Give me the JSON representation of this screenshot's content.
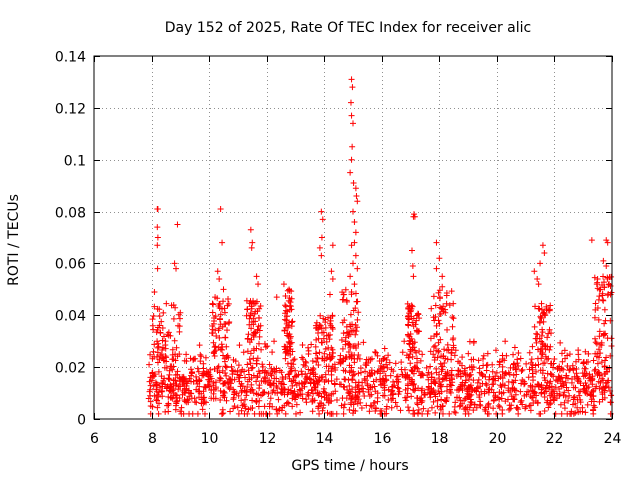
{
  "chart_data": {
    "type": "scatter",
    "title": "Day 152 of 2025, Rate Of TEC Index for receiver alic",
    "xlabel": "GPS time / hours",
    "ylabel": "ROTI / TECUs",
    "xlim": [
      6,
      24
    ],
    "ylim": [
      0,
      0.14
    ],
    "xticks": [
      6,
      8,
      10,
      12,
      14,
      16,
      18,
      20,
      22,
      24
    ],
    "xtick_labels": [
      "6",
      "8",
      "10",
      "12",
      "14",
      "16",
      "18",
      "20",
      "22",
      "24"
    ],
    "yticks": [
      0,
      0.02,
      0.04,
      0.06,
      0.08,
      0.1,
      0.12,
      0.14
    ],
    "ytick_labels": [
      "0",
      "0.02",
      "0.04",
      "0.06",
      "0.08",
      "0.1",
      "0.12",
      "0.14"
    ],
    "grid": true,
    "marker": "+",
    "marker_color": "#ff0000",
    "background_band": {
      "x_start": 7.9,
      "x_end": 24.0,
      "median": 0.013,
      "spread": 0.008,
      "min": 0.002,
      "max": 0.03,
      "point_count": 1600
    },
    "bursts": [
      {
        "x_start": 8.0,
        "x_end": 9.0,
        "y_max": 0.045
      },
      {
        "x_start": 10.1,
        "x_end": 10.7,
        "y_max": 0.047
      },
      {
        "x_start": 11.3,
        "x_end": 11.8,
        "y_max": 0.046
      },
      {
        "x_start": 12.6,
        "x_end": 12.9,
        "y_max": 0.05
      },
      {
        "x_start": 13.7,
        "x_end": 14.3,
        "y_max": 0.04
      },
      {
        "x_start": 14.6,
        "x_end": 15.2,
        "y_max": 0.05
      },
      {
        "x_start": 16.9,
        "x_end": 17.3,
        "y_max": 0.045
      },
      {
        "x_start": 17.7,
        "x_end": 18.5,
        "y_max": 0.05
      },
      {
        "x_start": 21.3,
        "x_end": 21.9,
        "y_max": 0.045
      },
      {
        "x_start": 23.4,
        "x_end": 24.0,
        "y_max": 0.055
      }
    ],
    "points": [
      {
        "x": 8.2,
        "y": 0.081
      },
      {
        "x": 8.22,
        "y": 0.081
      },
      {
        "x": 8.2,
        "y": 0.074
      },
      {
        "x": 8.22,
        "y": 0.07
      },
      {
        "x": 8.2,
        "y": 0.067
      },
      {
        "x": 8.21,
        "y": 0.058
      },
      {
        "x": 8.1,
        "y": 0.049
      },
      {
        "x": 8.9,
        "y": 0.075
      },
      {
        "x": 8.8,
        "y": 0.06
      },
      {
        "x": 8.85,
        "y": 0.058
      },
      {
        "x": 10.4,
        "y": 0.081
      },
      {
        "x": 10.45,
        "y": 0.068
      },
      {
        "x": 10.3,
        "y": 0.057
      },
      {
        "x": 10.35,
        "y": 0.054
      },
      {
        "x": 10.5,
        "y": 0.05
      },
      {
        "x": 11.45,
        "y": 0.073
      },
      {
        "x": 11.5,
        "y": 0.068
      },
      {
        "x": 11.48,
        "y": 0.066
      },
      {
        "x": 11.65,
        "y": 0.055
      },
      {
        "x": 11.7,
        "y": 0.052
      },
      {
        "x": 12.6,
        "y": 0.052
      },
      {
        "x": 12.35,
        "y": 0.047
      },
      {
        "x": 13.9,
        "y": 0.08
      },
      {
        "x": 13.95,
        "y": 0.077
      },
      {
        "x": 13.92,
        "y": 0.07
      },
      {
        "x": 13.85,
        "y": 0.066
      },
      {
        "x": 13.9,
        "y": 0.063
      },
      {
        "x": 14.3,
        "y": 0.067
      },
      {
        "x": 14.25,
        "y": 0.057
      },
      {
        "x": 14.3,
        "y": 0.054
      },
      {
        "x": 14.2,
        "y": 0.048
      },
      {
        "x": 14.95,
        "y": 0.131
      },
      {
        "x": 14.98,
        "y": 0.128
      },
      {
        "x": 14.93,
        "y": 0.122
      },
      {
        "x": 14.95,
        "y": 0.117
      },
      {
        "x": 15.0,
        "y": 0.114
      },
      {
        "x": 14.97,
        "y": 0.105
      },
      {
        "x": 14.95,
        "y": 0.1
      },
      {
        "x": 14.9,
        "y": 0.095
      },
      {
        "x": 15.02,
        "y": 0.091
      },
      {
        "x": 15.1,
        "y": 0.089
      },
      {
        "x": 15.12,
        "y": 0.086
      },
      {
        "x": 15.15,
        "y": 0.084
      },
      {
        "x": 15.0,
        "y": 0.08
      },
      {
        "x": 15.05,
        "y": 0.076
      },
      {
        "x": 15.1,
        "y": 0.072
      },
      {
        "x": 15.05,
        "y": 0.068
      },
      {
        "x": 14.95,
        "y": 0.067
      },
      {
        "x": 15.1,
        "y": 0.063
      },
      {
        "x": 15.0,
        "y": 0.06
      },
      {
        "x": 15.15,
        "y": 0.058
      },
      {
        "x": 14.9,
        "y": 0.055
      },
      {
        "x": 15.05,
        "y": 0.052
      },
      {
        "x": 14.95,
        "y": 0.049
      },
      {
        "x": 17.1,
        "y": 0.078
      },
      {
        "x": 17.12,
        "y": 0.079
      },
      {
        "x": 17.15,
        "y": 0.078
      },
      {
        "x": 17.05,
        "y": 0.065
      },
      {
        "x": 17.08,
        "y": 0.059
      },
      {
        "x": 17.1,
        "y": 0.055
      },
      {
        "x": 17.9,
        "y": 0.068
      },
      {
        "x": 18.0,
        "y": 0.062
      },
      {
        "x": 17.9,
        "y": 0.058
      },
      {
        "x": 18.1,
        "y": 0.055
      },
      {
        "x": 18.1,
        "y": 0.051
      },
      {
        "x": 21.6,
        "y": 0.067
      },
      {
        "x": 21.65,
        "y": 0.064
      },
      {
        "x": 21.3,
        "y": 0.057
      },
      {
        "x": 21.5,
        "y": 0.06
      },
      {
        "x": 21.4,
        "y": 0.054
      },
      {
        "x": 21.45,
        "y": 0.052
      },
      {
        "x": 23.3,
        "y": 0.069
      },
      {
        "x": 23.8,
        "y": 0.069
      },
      {
        "x": 23.85,
        "y": 0.068
      },
      {
        "x": 23.7,
        "y": 0.061
      },
      {
        "x": 23.8,
        "y": 0.059
      },
      {
        "x": 23.5,
        "y": 0.054
      },
      {
        "x": 23.6,
        "y": 0.05
      },
      {
        "x": 23.9,
        "y": 0.052
      },
      {
        "x": 23.95,
        "y": 0.048
      }
    ]
  }
}
